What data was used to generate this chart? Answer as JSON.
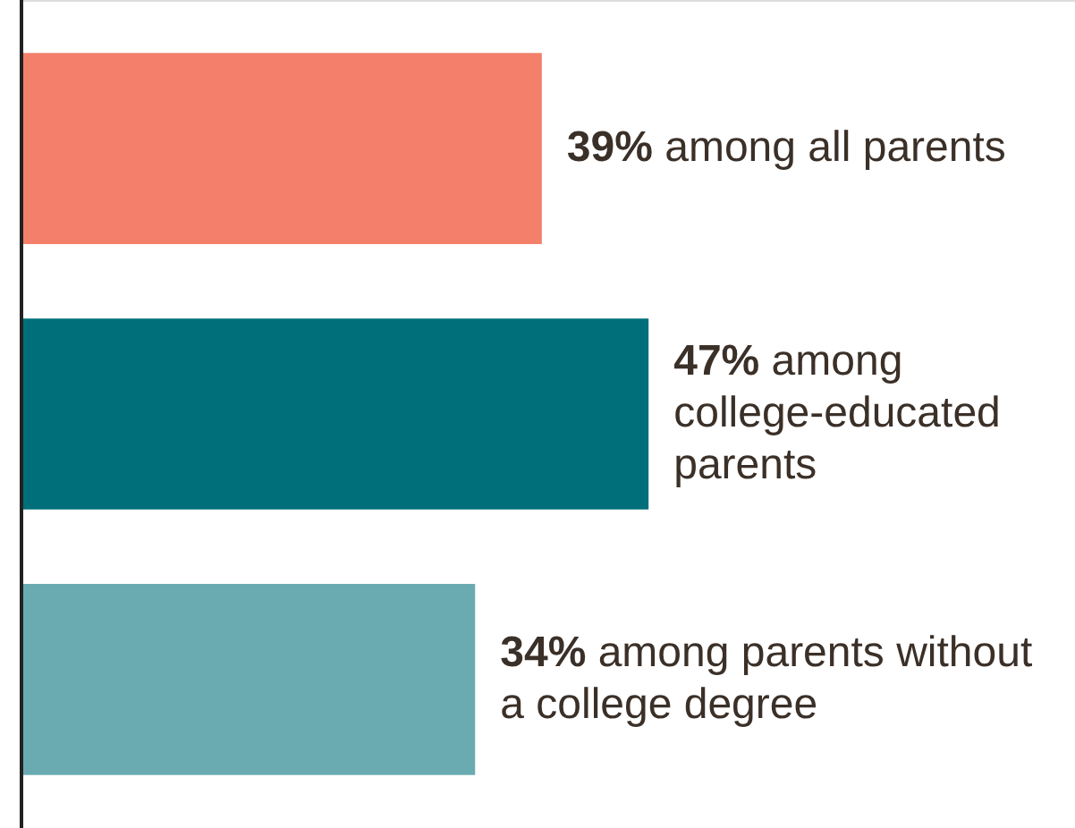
{
  "chart_data": {
    "type": "bar",
    "orientation": "horizontal",
    "categories": [
      "among all parents",
      "among college-educated parents",
      "among parents without a college degree"
    ],
    "values": [
      39,
      47,
      34
    ],
    "colors": [
      "#f4806b",
      "#006f7a",
      "#6aabb2"
    ],
    "value_labels": [
      "39%",
      "47%",
      "34%"
    ]
  }
}
